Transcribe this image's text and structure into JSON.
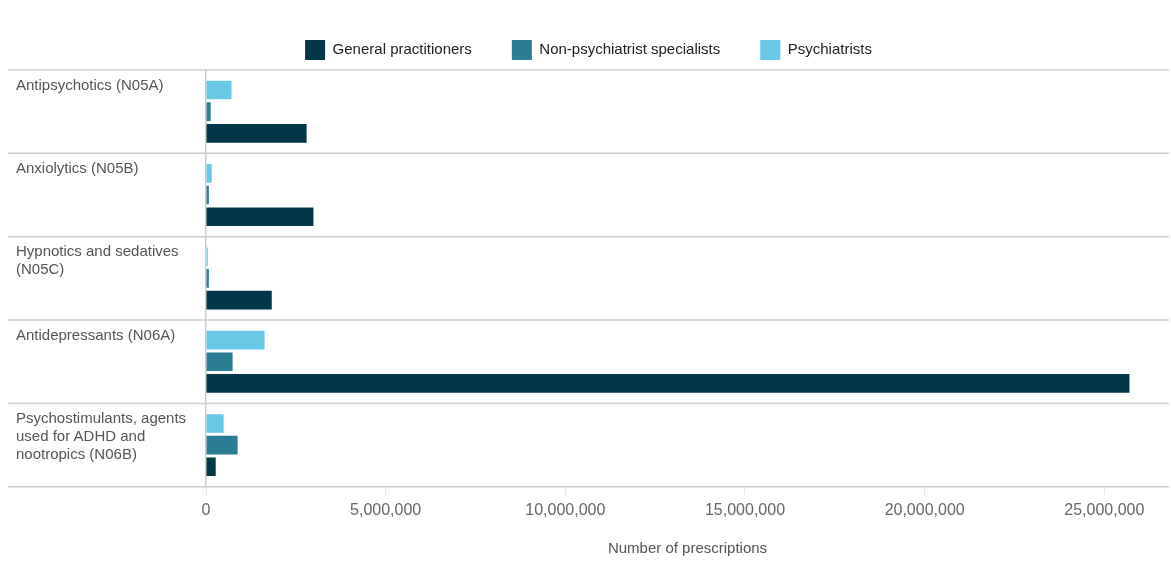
{
  "chart_data": {
    "type": "bar",
    "orientation": "horizontal",
    "categories": [
      "Antipsychotics (N05A)",
      "Anxiolytics (N05B)",
      "Hypnotics and sedatives (N05C)",
      "Antidepressants (N06A)",
      "Psychostimulants, agents used for ADHD and nootropics (N06B)"
    ],
    "series": [
      {
        "name": "General practitioners",
        "color": "#023747",
        "values": [
          2800000,
          2990000,
          1830000,
          25700000,
          270000
        ]
      },
      {
        "name": "Non-psychiatrist specialists",
        "color": "#2a7d94",
        "values": [
          130000,
          80000,
          80000,
          740000,
          880000
        ]
      },
      {
        "name": "Psychiatrists",
        "color": "#68c8e6",
        "values": [
          710000,
          160000,
          50000,
          1630000,
          490000
        ]
      }
    ],
    "xlabel": "Number of prescriptions",
    "xlim": [
      0,
      26800000
    ],
    "xticks": [
      0,
      {
        "value": 5000000,
        "label": "5,000,000"
      },
      {
        "value": 10000000,
        "label": "10,000,000"
      },
      {
        "value": 15000000,
        "label": "15,000,000"
      },
      {
        "value": 20000000,
        "label": "20,000,000"
      },
      {
        "value": 25000000,
        "label": "25,000,000"
      }
    ],
    "grid": "y",
    "legend": "top"
  }
}
